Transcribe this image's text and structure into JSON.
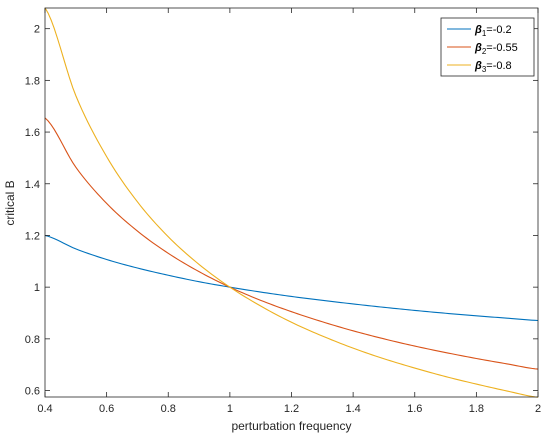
{
  "chart_data": {
    "type": "line",
    "xlabel": "perturbation frequency",
    "ylabel": "critical B",
    "xlim": [
      0.4,
      2.0
    ],
    "ylim": [
      0.575,
      2.08
    ],
    "xticks": [
      0.4,
      0.6,
      0.8,
      1.0,
      1.2,
      1.4,
      1.6,
      1.8,
      2.0
    ],
    "xtick_labels": [
      "0.4",
      "0.6",
      "0.8",
      "1",
      "1.2",
      "1.4",
      "1.6",
      "1.8",
      "2"
    ],
    "yticks": [
      0.6,
      0.8,
      1.0,
      1.2,
      1.4,
      1.6,
      1.8,
      2.0
    ],
    "ytick_labels": [
      "0.6",
      "0.8",
      "1",
      "1.2",
      "1.4",
      "1.6",
      "1.8",
      "2"
    ],
    "grid": false,
    "legend_position": "top-right",
    "x": [
      0.4,
      0.5,
      0.6,
      0.7,
      0.8,
      0.9,
      1.0,
      1.1,
      1.2,
      1.3,
      1.4,
      1.5,
      1.6,
      1.7,
      1.8,
      1.9,
      2.0
    ],
    "series": [
      {
        "name": "β1=-0.2",
        "legend": {
          "symbol": "β",
          "sub": "1",
          "rest": "=-0.2"
        },
        "color": "#0072BD",
        "values": [
          1.2,
          1.148,
          1.107,
          1.074,
          1.046,
          1.021,
          1.0,
          0.981,
          0.964,
          0.949,
          0.935,
          0.922,
          0.91,
          0.899,
          0.889,
          0.88,
          0.871
        ]
      },
      {
        "name": "β2=-0.55",
        "legend": {
          "symbol": "β",
          "sub": "2",
          "rest": "=-0.55"
        },
        "color": "#D95319",
        "values": [
          1.655,
          1.464,
          1.324,
          1.217,
          1.131,
          1.06,
          1.0,
          0.949,
          0.905,
          0.866,
          0.831,
          0.8,
          0.772,
          0.747,
          0.724,
          0.703,
          0.683
        ]
      },
      {
        "name": "β3=-0.8",
        "legend": {
          "symbol": "β",
          "sub": "3",
          "rest": "=-0.8"
        },
        "color": "#EDB120",
        "values": [
          2.081,
          1.741,
          1.505,
          1.33,
          1.195,
          1.088,
          1.0,
          0.927,
          0.864,
          0.811,
          0.764,
          0.723,
          0.687,
          0.654,
          0.625,
          0.598,
          0.574
        ]
      }
    ]
  }
}
